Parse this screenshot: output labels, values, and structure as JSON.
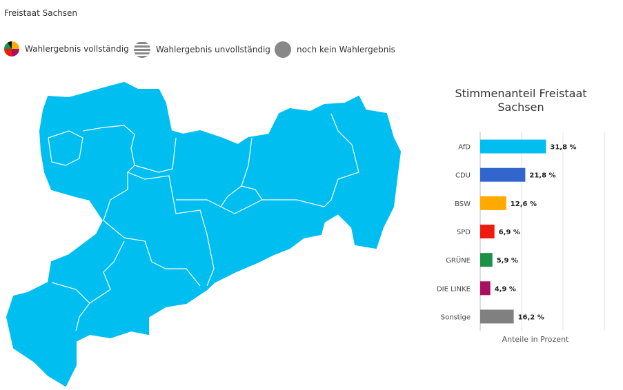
{
  "header": {
    "title": "Freistaat Sachsen"
  },
  "legend": [
    "Wahlergebnis vollständig",
    "Wahlergebnis unvollständig",
    "noch kein Wahlergebnis"
  ],
  "chart_data": {
    "type": "bar",
    "orientation": "horizontal",
    "title": "Stimmenanteil Freistaat Sachsen",
    "x_label": "Anteile in Prozent",
    "categories": [
      "AfD",
      "CDU",
      "BSW",
      "SPD",
      "GRÜNE",
      "DIE LINKE",
      "Sonstige"
    ],
    "values": [
      31.8,
      21.8,
      12.6,
      6.9,
      5.9,
      4.9,
      16.2
    ],
    "value_labels": [
      "31,8 %",
      "21,8 %",
      "12,6 %",
      "6,9 %",
      "5,9 %",
      "4,9 %",
      "16,2 %"
    ],
    "colors": [
      "#00bef0",
      "#3366cc",
      "#ffaa00",
      "#ee1c0f",
      "#1a9146",
      "#aa1060",
      "#808080"
    ],
    "xlim": [
      0,
      60
    ],
    "gridlines": [
      0,
      20,
      40,
      60
    ]
  }
}
